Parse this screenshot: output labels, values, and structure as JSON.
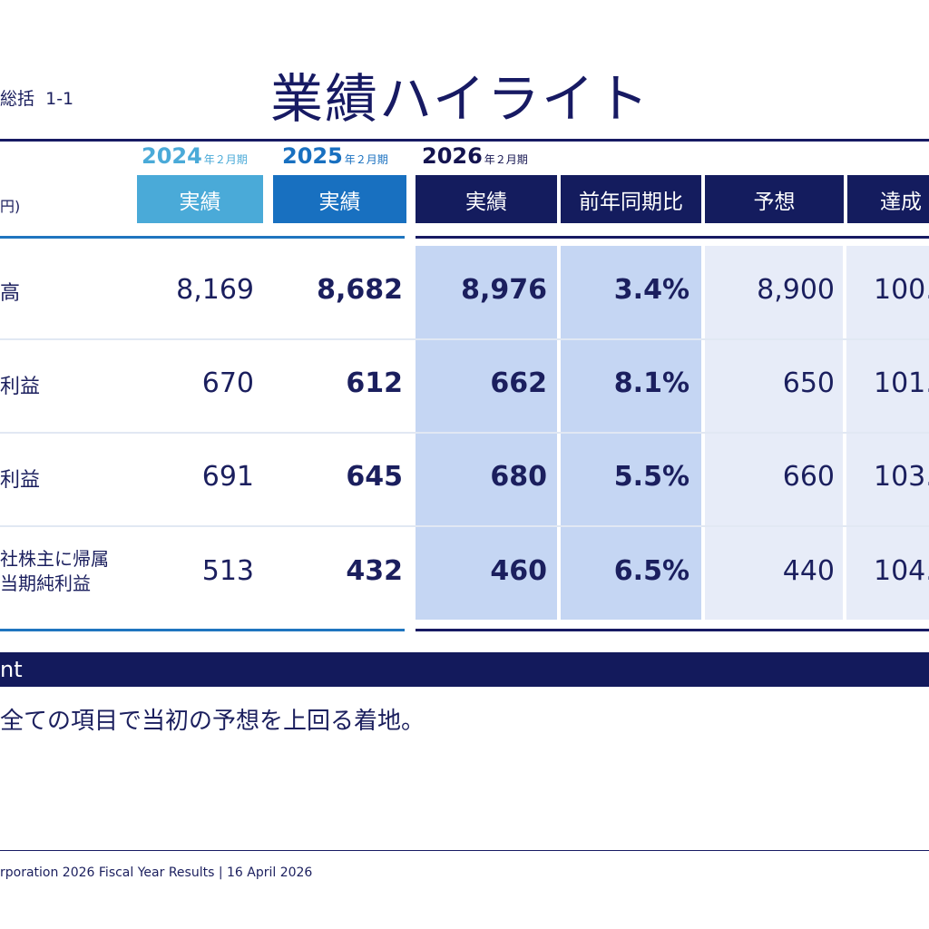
{
  "header": {
    "section": "総括",
    "section_num": "1-1",
    "title": "業績ハイライト"
  },
  "table": {
    "unit": "円)",
    "years": [
      {
        "year": "2024",
        "fy": "年２月期"
      },
      {
        "year": "2025",
        "fy": "年２月期"
      },
      {
        "year": "2026",
        "fy": "年２月期"
      }
    ],
    "col_headers": [
      "実績",
      "実績",
      "実績",
      "前年同期比",
      "予想",
      "達成"
    ],
    "rows": [
      {
        "label": "高",
        "label2": "",
        "v2024": "8,169",
        "v2025": "8,682",
        "v2026": "8,976",
        "yoy": "3.4%",
        "forecast": "8,900",
        "achievement": "100."
      },
      {
        "label": "利益",
        "label2": "",
        "v2024": "670",
        "v2025": "612",
        "v2026": "662",
        "yoy": "8.1%",
        "forecast": "650",
        "achievement": "101."
      },
      {
        "label": "利益",
        "label2": "",
        "v2024": "691",
        "v2025": "645",
        "v2026": "680",
        "yoy": "5.5%",
        "forecast": "660",
        "achievement": "103."
      },
      {
        "label": "社株主に帰属",
        "label2": "当期純利益",
        "v2024": "513",
        "v2025": "432",
        "v2026": "460",
        "yoy": "6.5%",
        "forecast": "440",
        "achievement": "104."
      }
    ]
  },
  "point": {
    "heading": "nt",
    "text": "全ての項目で当初の予想を上回る着地。"
  },
  "footer": {
    "text": "rporation 2026 Fiscal Year Results  |  16 April 2026"
  },
  "colors": {
    "navy": "#171a63",
    "light_blue": "#4aaad8",
    "mid_blue": "#1870c0",
    "actual_bg": "#c5d6f3",
    "forecast_bg": "#e7ecf8"
  }
}
